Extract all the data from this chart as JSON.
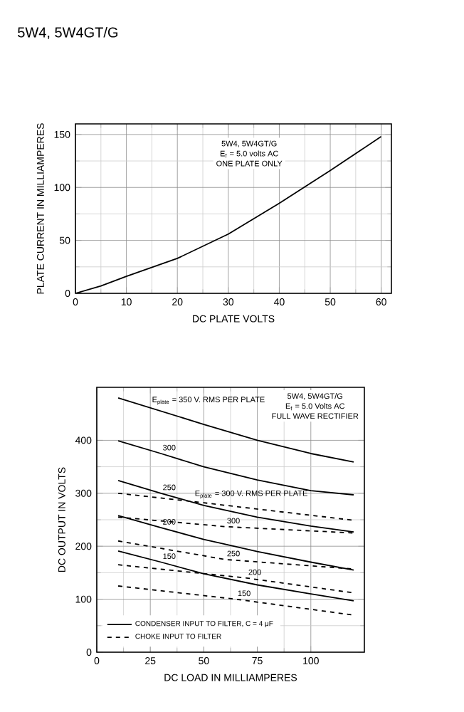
{
  "chart_data": [
    {
      "type": "line",
      "title": "5W4, 5W4GT/G",
      "xlabel": "DC PLATE VOLTS",
      "ylabel": "PLATE CURRENT IN MILLIAMPERES",
      "xlim": [
        0,
        62
      ],
      "ylim": [
        0,
        160
      ],
      "xticks": [
        0,
        10,
        20,
        30,
        40,
        50,
        60
      ],
      "yticks": [
        0,
        50,
        100,
        150
      ],
      "grid": true,
      "marker": "none",
      "annotations": [
        "5W4, 5W4GT/G",
        "E$_{f}$ = 5.0 volts AC",
        "ONE PLATE ONLY"
      ],
      "series": [
        {
          "color": "#000000",
          "line_style": "solid",
          "x": [
            0,
            5,
            10,
            20,
            30,
            40,
            50,
            60
          ],
          "values": [
            0,
            7,
            16,
            33,
            56,
            85,
            116,
            148
          ]
        }
      ]
    },
    {
      "type": "line",
      "xlabel": "DC LOAD IN MILLIAMPERES",
      "ylabel": "DC OUTPUT IN VOLTS",
      "xlim": [
        0,
        125
      ],
      "ylim": [
        0,
        500
      ],
      "xticks": [
        0,
        25,
        50,
        75,
        100
      ],
      "yticks": [
        0,
        100,
        200,
        300,
        400
      ],
      "grid": true,
      "marker": "none",
      "legend": "bottom left",
      "annotations": [
        "5W4, 5W4GT/G",
        "E$_{f}$ = 5.0 Volts AC",
        "FULL WAVE RECTIFIER",
        {
          "text": "E$_{plate}$ = 350 V. RMS PER PLATE",
          "x": 25,
          "y": 461
        },
        {
          "text": "300",
          "x": 30,
          "y": 375
        },
        {
          "text": "250",
          "x": 30,
          "y": 300
        },
        {
          "text": "200",
          "x": 30,
          "y": 235
        },
        {
          "text": "150",
          "x": 30,
          "y": 170
        },
        {
          "text": "E$_{plate}$ = 300 V. RMS PER PLATE",
          "x": 45,
          "y": 284
        },
        {
          "text": "300",
          "x": 60,
          "y": 237
        },
        {
          "text": "250",
          "x": 60,
          "y": 175
        },
        {
          "text": "200",
          "x": 70,
          "y": 140
        },
        {
          "text": "150",
          "x": 65,
          "y": 100
        }
      ],
      "series": [
        {
          "name": "CONDENSER INPUT TO FILTER, C = 4 μF",
          "color": "#000000",
          "line_style": "solid",
          "x": [
            10,
            30,
            50,
            75,
            100,
            120
          ],
          "values": [
            480,
            455,
            430,
            400,
            375,
            359
          ]
        },
        {
          "color": "#000000",
          "line_style": "solid",
          "x": [
            10,
            30,
            50,
            75,
            100,
            120
          ],
          "values": [
            399,
            375,
            350,
            325,
            305,
            297
          ]
        },
        {
          "color": "#000000",
          "line_style": "solid",
          "x": [
            10,
            30,
            50,
            75,
            100,
            120
          ],
          "values": [
            324,
            300,
            277,
            255,
            238,
            227
          ]
        },
        {
          "color": "#000000",
          "line_style": "solid",
          "x": [
            10,
            30,
            50,
            75,
            100,
            120
          ],
          "values": [
            258,
            235,
            213,
            190,
            170,
            155
          ]
        },
        {
          "color": "#000000",
          "line_style": "solid",
          "x": [
            10,
            30,
            50,
            75,
            100,
            120
          ],
          "values": [
            191,
            170,
            148,
            127,
            110,
            97
          ]
        },
        {
          "name": "CHOKE INPUT TO FILTER",
          "color": "#000000",
          "line_style": "dashed",
          "x": [
            10,
            50,
            120
          ],
          "values": [
            300,
            282,
            249
          ]
        },
        {
          "color": "#000000",
          "line_style": "dashed",
          "x": [
            10,
            60,
            120
          ],
          "values": [
            255,
            237,
            225
          ]
        },
        {
          "color": "#000000",
          "line_style": "dashed",
          "x": [
            10,
            60,
            120
          ],
          "values": [
            210,
            175,
            157
          ]
        },
        {
          "color": "#000000",
          "line_style": "dashed",
          "x": [
            10,
            70,
            120
          ],
          "values": [
            165,
            140,
            112
          ]
        },
        {
          "color": "#000000",
          "line_style": "dashed",
          "x": [
            10,
            65,
            120
          ],
          "values": [
            125,
            100,
            70
          ]
        }
      ]
    }
  ]
}
